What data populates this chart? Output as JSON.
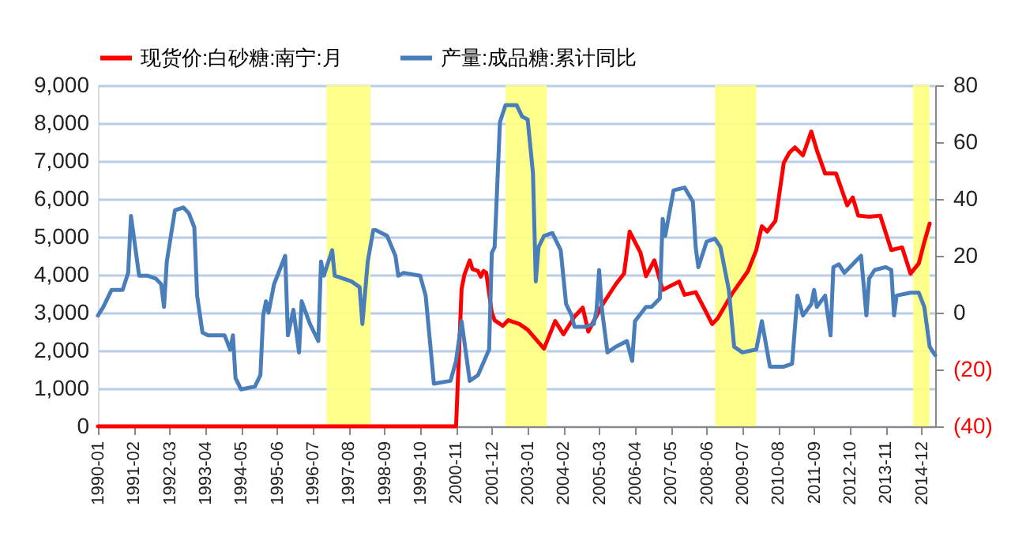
{
  "chart_data": {
    "type": "line",
    "series": [
      {
        "name": "现货价:白砂糖:南宁:月",
        "color": "#ff0000",
        "axis": "y",
        "x": [
          "1990-01",
          "2000-11",
          "2001-01",
          "2001-02",
          "2001-04",
          "2001-05",
          "2001-07",
          "2001-08",
          "2001-09",
          "2001-10",
          "2001-12",
          "2002-01",
          "2002-04",
          "2002-06",
          "2002-10",
          "2003-01",
          "2003-07",
          "2003-11",
          "2004-02",
          "2004-06",
          "2004-09",
          "2004-11",
          "2005-04",
          "2005-09",
          "2005-12",
          "2006-02",
          "2006-06",
          "2006-08",
          "2006-11",
          "2007-02",
          "2007-08",
          "2007-10",
          "2008-02",
          "2008-05",
          "2008-08",
          "2008-10",
          "2009-03",
          "2009-09",
          "2009-12",
          "2010-02",
          "2010-04",
          "2010-07",
          "2010-10",
          "2010-12",
          "2011-02",
          "2011-05",
          "2011-08",
          "2011-10",
          "2012-01",
          "2012-05",
          "2012-09",
          "2012-11",
          "2013-01",
          "2013-05",
          "2013-09",
          "2014-01",
          "2014-05",
          "2014-08",
          "2014-11",
          "2015-01",
          "2015-03"
        ],
        "values": [
          0,
          0,
          3620,
          4000,
          4380,
          4150,
          4100,
          3950,
          4100,
          4050,
          3000,
          2800,
          2650,
          2800,
          2700,
          2550,
          2050,
          2780,
          2430,
          2890,
          3130,
          2500,
          3190,
          3750,
          4030,
          5140,
          4580,
          3960,
          4380,
          3600,
          3820,
          3470,
          3540,
          3130,
          2700,
          2850,
          3470,
          4100,
          4650,
          5280,
          5140,
          5420,
          6950,
          7220,
          7360,
          7150,
          7780,
          7290,
          6670,
          6670,
          5830,
          6040,
          5560,
          5530,
          5560,
          4650,
          4720,
          4030,
          4300,
          4860,
          5350
        ]
      },
      {
        "name": "产量:成品糖:累计同比",
        "color": "#4a7ebb",
        "axis": "y2",
        "x": [
          "1990-01",
          "1990-03",
          "1990-06",
          "1990-10",
          "1990-12",
          "1991-01",
          "1991-04",
          "1991-07",
          "1991-10",
          "1991-12",
          "1992-01",
          "1992-02",
          "1992-05",
          "1992-08",
          "1992-10",
          "1992-12",
          "1993-01",
          "1993-03",
          "1993-05",
          "1993-11",
          "1994-01",
          "1994-02",
          "1994-03",
          "1994-05",
          "1994-10",
          "1994-12",
          "1995-01",
          "1995-02",
          "1995-03",
          "1995-05",
          "1995-09",
          "1995-10",
          "1995-12",
          "1996-02",
          "1996-03",
          "1996-06",
          "1996-09",
          "1996-10",
          "1996-11",
          "1997-02",
          "1997-03",
          "1997-09",
          "1997-12",
          "1998-01",
          "1998-03",
          "1998-05",
          "1998-06",
          "1998-10",
          "1999-01",
          "1999-02",
          "1999-04",
          "1999-10",
          "1999-12",
          "2000-02",
          "2000-03",
          "2000-09",
          "2000-11",
          "2001-01",
          "2001-04",
          "2001-07",
          "2001-11",
          "2001-12",
          "2002-01",
          "2002-03",
          "2002-05",
          "2002-09",
          "2002-11",
          "2003-01",
          "2003-03",
          "2003-04",
          "2003-05",
          "2003-07",
          "2003-10",
          "2004-01",
          "2004-03",
          "2004-05",
          "2004-06",
          "2004-10",
          "2005-01",
          "2005-02",
          "2005-03",
          "2005-04",
          "2005-06",
          "2005-09",
          "2006-01",
          "2006-03",
          "2006-04",
          "2006-08",
          "2006-10",
          "2007-01",
          "2007-02",
          "2007-03",
          "2007-06",
          "2007-10",
          "2008-01",
          "2008-02",
          "2008-03",
          "2008-06",
          "2008-09",
          "2008-11",
          "2009-02",
          "2009-04",
          "2009-07",
          "2009-12",
          "2010-02",
          "2010-05",
          "2010-10",
          "2011-01",
          "2011-03",
          "2011-05",
          "2011-08",
          "2011-09",
          "2011-10",
          "2012-01",
          "2012-03",
          "2012-04",
          "2012-06",
          "2012-08",
          "2013-01",
          "2013-02",
          "2013-04",
          "2013-05",
          "2013-07",
          "2013-11",
          "2014-01",
          "2014-02",
          "2014-03",
          "2014-08",
          "2014-11",
          "2015-01",
          "2015-03",
          "2015-05"
        ],
        "values": [
          -1,
          2,
          8,
          8,
          14,
          34,
          13,
          13,
          12,
          10,
          2,
          18,
          36,
          37,
          35,
          30,
          6,
          -7,
          -8,
          -8,
          -13,
          -8,
          -23,
          -27,
          -26,
          -22,
          -1,
          4,
          0,
          10,
          20,
          -8,
          1,
          -14,
          4,
          -4,
          -10,
          18,
          13,
          22,
          13,
          11,
          9,
          -4,
          18,
          29,
          29,
          27,
          20,
          13,
          14,
          13,
          6,
          -15,
          -25,
          -24,
          -17,
          -3,
          -24,
          -22,
          -13,
          21,
          23,
          67,
          73,
          73,
          69,
          68,
          49,
          11,
          23,
          27,
          28,
          22,
          3,
          -1,
          -5,
          -5,
          -4,
          1,
          15,
          1,
          -14,
          -12,
          -10,
          -17,
          -3,
          2,
          2,
          5,
          33,
          27,
          43,
          44,
          39,
          23,
          16,
          25,
          26,
          23,
          8,
          -12,
          -14,
          -13,
          -3,
          -19,
          -19,
          -18,
          6,
          -1,
          3,
          8,
          2,
          6,
          -8,
          16,
          17,
          14,
          19,
          20,
          -1,
          12,
          15,
          16,
          15,
          -1,
          6,
          7,
          7,
          2,
          -12,
          -15
        ]
      }
    ],
    "xlim": [
      "1990-01",
      "2015-05"
    ],
    "xticks": [
      "1990-01",
      "1991-02",
      "1992-03",
      "1993-04",
      "1994-05",
      "1995-06",
      "1996-07",
      "1997-08",
      "1998-09",
      "1999-10",
      "2000-11",
      "2001-12",
      "2003-01",
      "2004-02",
      "2005-03",
      "2006-04",
      "2007-05",
      "2008-06",
      "2009-07",
      "2010-08",
      "2011-09",
      "2012-10",
      "2013-11",
      "2014-12"
    ],
    "ylim": [
      0,
      9000
    ],
    "yticks": [
      0,
      {
        "value": 1000,
        "label": "1,000"
      },
      {
        "value": 2000,
        "label": "2,000"
      },
      {
        "value": 3000,
        "label": "3,000"
      },
      {
        "value": 4000,
        "label": "4,000"
      },
      {
        "value": 5000,
        "label": "5,000"
      },
      {
        "value": 6000,
        "label": "6,000"
      },
      {
        "value": 7000,
        "label": "7,000"
      },
      {
        "value": 8000,
        "label": "8,000"
      },
      {
        "value": 9000,
        "label": "9,000"
      }
    ],
    "y2lim": [
      -40,
      80
    ],
    "y2ticks": [
      {
        "value": -40,
        "label": "(40)"
      },
      {
        "value": -20,
        "label": "(20)"
      },
      0,
      20,
      40,
      60,
      80
    ],
    "bands": [
      {
        "axis": "x",
        "from": "1996-12",
        "to": "1998-04",
        "color": "#ffff80"
      },
      {
        "axis": "x",
        "from": "2002-05",
        "to": "2003-08",
        "color": "#ffff80"
      },
      {
        "axis": "x",
        "from": "2008-09",
        "to": "2009-12",
        "color": "#ffff80"
      },
      {
        "axis": "x",
        "from": "2014-09",
        "to": "2015-03",
        "color": "#ffff80"
      }
    ],
    "grid": "y",
    "legend": "top"
  }
}
